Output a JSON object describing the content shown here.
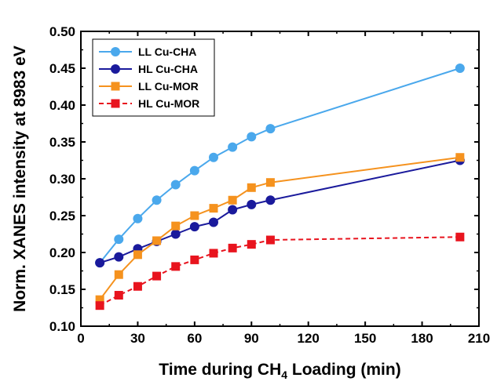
{
  "chart_data": {
    "type": "line",
    "title": "",
    "xlabel": {
      "main": "Time during CH",
      "sub": "4",
      "rest": " Loading (min)"
    },
    "ylabel": "Norm. XANES intensity at 8983 eV",
    "xlim": [
      0,
      210
    ],
    "ylim": [
      0.1,
      0.5
    ],
    "xticks": [
      0,
      30,
      60,
      90,
      120,
      150,
      180,
      210
    ],
    "yticks": [
      "0.10",
      "0.15",
      "0.20",
      "0.25",
      "0.30",
      "0.35",
      "0.40",
      "0.45",
      "0.50"
    ],
    "grid": false,
    "legend_position": "top-left",
    "series": [
      {
        "name": "LL Cu-CHA",
        "color": "#4aa8ec",
        "marker": "circle",
        "dash": "solid",
        "x": [
          10,
          20,
          30,
          40,
          50,
          60,
          70,
          80,
          90,
          100,
          200
        ],
        "y": [
          0.186,
          0.218,
          0.246,
          0.271,
          0.292,
          0.311,
          0.329,
          0.343,
          0.357,
          0.368,
          0.45
        ]
      },
      {
        "name": "HL Cu-CHA",
        "color": "#1a1a9c",
        "marker": "circle",
        "dash": "solid",
        "x": [
          10,
          20,
          30,
          40,
          50,
          60,
          70,
          80,
          90,
          100,
          200
        ],
        "y": [
          0.186,
          0.194,
          0.205,
          0.215,
          0.225,
          0.235,
          0.241,
          0.258,
          0.265,
          0.271,
          0.325
        ]
      },
      {
        "name": "LL Cu-MOR",
        "color": "#f5921e",
        "marker": "square",
        "dash": "solid",
        "x": [
          10,
          20,
          30,
          40,
          50,
          60,
          70,
          80,
          90,
          100,
          200
        ],
        "y": [
          0.136,
          0.17,
          0.197,
          0.216,
          0.236,
          0.25,
          0.26,
          0.271,
          0.288,
          0.295,
          0.329
        ]
      },
      {
        "name": "HL Cu-MOR",
        "color": "#e8141e",
        "marker": "square",
        "dash": "dashed",
        "x": [
          10,
          20,
          30,
          40,
          50,
          60,
          70,
          80,
          90,
          100,
          200
        ],
        "y": [
          0.128,
          0.142,
          0.154,
          0.168,
          0.181,
          0.19,
          0.199,
          0.206,
          0.211,
          0.217,
          0.221
        ]
      }
    ]
  }
}
